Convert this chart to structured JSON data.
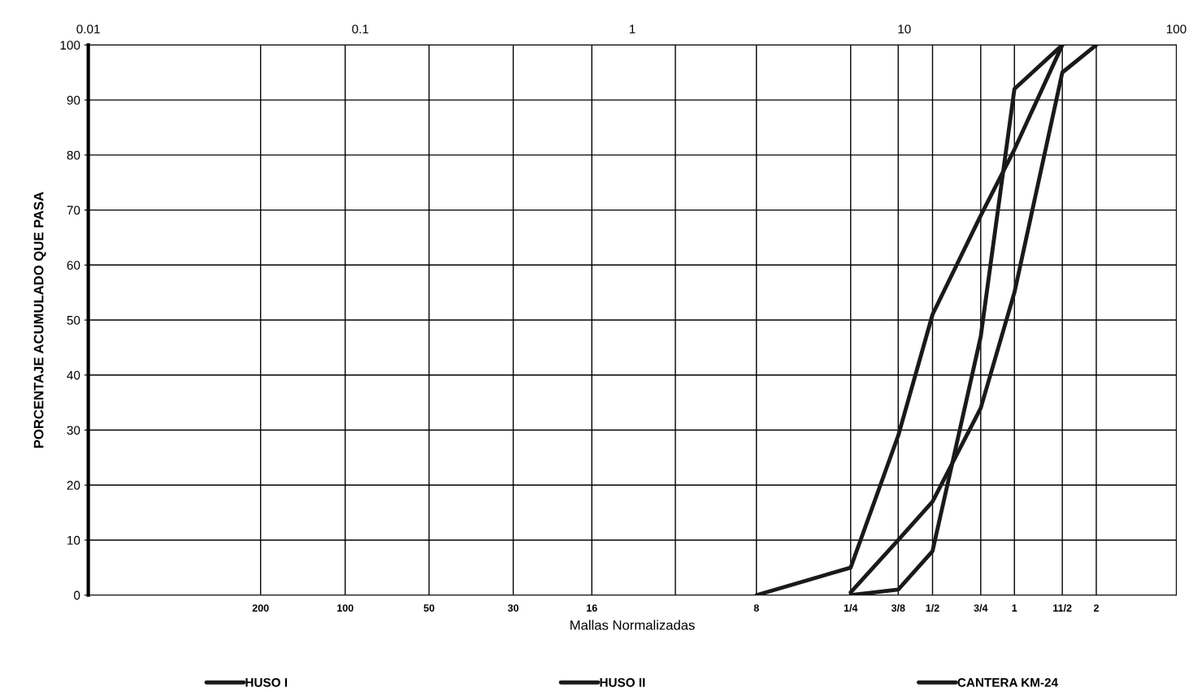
{
  "chart_data": {
    "type": "line",
    "xlabel": "Mallas Normalizadas",
    "ylabel": "PORCENTAJE ACUMULADO QUE PASA",
    "log": "x",
    "xlim": [
      0.01,
      100
    ],
    "ylim": [
      0,
      100
    ],
    "xticks": [
      0.01,
      0.1,
      1,
      10,
      100
    ],
    "yticks": [
      0,
      10,
      20,
      30,
      40,
      50,
      60,
      70,
      80,
      90,
      100
    ],
    "ref_lines": [
      {
        "axis": "x",
        "value": 0.043
      },
      {
        "axis": "x",
        "value": 0.088
      },
      {
        "axis": "x",
        "value": 0.179
      },
      {
        "axis": "x",
        "value": 0.365
      },
      {
        "axis": "x",
        "value": 0.71
      },
      {
        "axis": "x",
        "value": 1.44
      },
      {
        "axis": "x",
        "value": 2.86
      },
      {
        "axis": "x",
        "value": 6.35
      },
      {
        "axis": "x",
        "value": 9.5
      },
      {
        "axis": "x",
        "value": 12.7
      },
      {
        "axis": "x",
        "value": 19.1
      },
      {
        "axis": "x",
        "value": 25.4
      },
      {
        "axis": "x",
        "value": 38.1
      },
      {
        "axis": "x",
        "value": 50.8
      }
    ],
    "annotations": [
      {
        "text": "200",
        "x": 0.043,
        "y": 0
      },
      {
        "text": "100",
        "x": 0.088,
        "y": 0
      },
      {
        "text": "50",
        "x": 0.179,
        "y": 0
      },
      {
        "text": "30",
        "x": 0.365,
        "y": 0
      },
      {
        "text": "16",
        "x": 0.71,
        "y": 0
      },
      {
        "text": "8",
        "x": 2.86,
        "y": 0
      },
      {
        "text": "1/4",
        "x": 6.35,
        "y": 0
      },
      {
        "text": "3/8",
        "x": 9.5,
        "y": 0
      },
      {
        "text": "1/2",
        "x": 12.7,
        "y": 0
      },
      {
        "text": "3/4",
        "x": 19.1,
        "y": 0
      },
      {
        "text": "1",
        "x": 25.4,
        "y": 0
      },
      {
        "text": "11/2",
        "x": 38.1,
        "y": 0
      },
      {
        "text": "2",
        "x": 50.8,
        "y": 0
      }
    ],
    "grid": "y",
    "legend": "bottom",
    "marker": "none",
    "line_style": "solid",
    "series": [
      {
        "name": "HUSO I",
        "color": "#1a1a1a",
        "x": [
          2.86,
          6.35,
          9.5,
          12.7,
          19.1,
          25.4,
          38.1
        ],
        "values": [
          0,
          5,
          29,
          51,
          69,
          81,
          100
        ]
      },
      {
        "name": "HUSO II",
        "color": "#1a1a1a",
        "x": [
          6.35,
          9.5,
          12.7,
          19.1,
          25.4,
          38.1,
          50.8
        ],
        "values": [
          0.5,
          10,
          17,
          34,
          55,
          95,
          100
        ]
      },
      {
        "name": "CANTERA KM-24",
        "color": "#1a1a1a",
        "x": [
          6.35,
          9.5,
          12.7,
          19.1,
          25.4,
          38.1
        ],
        "values": [
          0,
          1,
          8,
          47,
          92,
          100
        ]
      }
    ]
  }
}
